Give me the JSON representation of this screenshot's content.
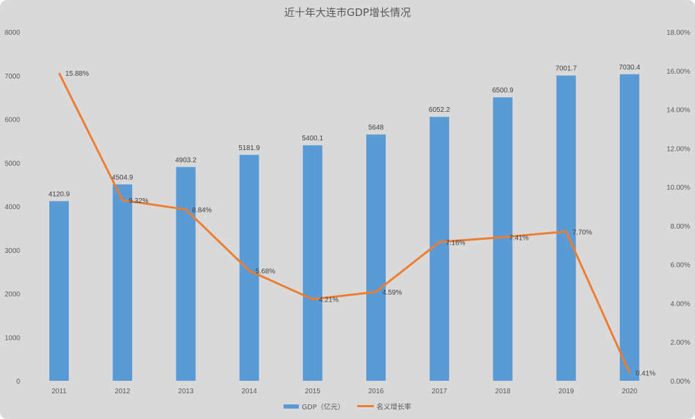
{
  "chart": {
    "title": "近十年大连市GDP增长情况",
    "left_axis_ticks": [
      "0",
      "1000",
      "2000",
      "3000",
      "4000",
      "5000",
      "6000",
      "7000",
      "8000"
    ],
    "right_axis_ticks": [
      "0.00%",
      "2.00%",
      "4.00%",
      "6.00%",
      "8.00%",
      "10.00%",
      "12.00%",
      "14.00%",
      "16.00%",
      "18.00%"
    ],
    "legend": {
      "bar_label": "GDP（亿元）",
      "line_label": "名义增长率"
    },
    "colors": {
      "bar": "#5b9bd5",
      "line": "#ed7d31",
      "background": "#d9d9d9",
      "text": "#595959"
    }
  },
  "chart_data": {
    "type": "bar",
    "title": "近十年大连市GDP增长情况",
    "categories": [
      "2011",
      "2012",
      "2013",
      "2014",
      "2015",
      "2016",
      "2017",
      "2018",
      "2019",
      "2020"
    ],
    "series": [
      {
        "name": "GDP（亿元）",
        "type": "bar",
        "axis": "left",
        "values": [
          4120.9,
          4504.9,
          4903.2,
          5181.9,
          5400.1,
          5648,
          6052.2,
          6500.9,
          7001.7,
          7030.4
        ],
        "labels": [
          "4120.9",
          "4504.9",
          "4903.2",
          "5181.9",
          "5400.1",
          "5648",
          "6052.2",
          "6500.9",
          "7001.7",
          "7030.4"
        ]
      },
      {
        "name": "名义增长率",
        "type": "line",
        "axis": "right",
        "values": [
          15.88,
          9.32,
          8.84,
          5.68,
          4.21,
          4.59,
          7.16,
          7.41,
          7.7,
          0.41
        ],
        "labels": [
          "15.88%",
          "9.32%",
          "8.84%",
          "5.68%",
          "4.21%",
          "4.59%",
          "7.16%",
          "7.41%",
          "7.70%",
          "0.41%"
        ]
      }
    ],
    "xlabel": "",
    "ylabel": "",
    "ylim": [
      0,
      8000
    ],
    "y2lim": [
      0,
      0.18
    ],
    "grid": false,
    "legend_position": "bottom"
  }
}
